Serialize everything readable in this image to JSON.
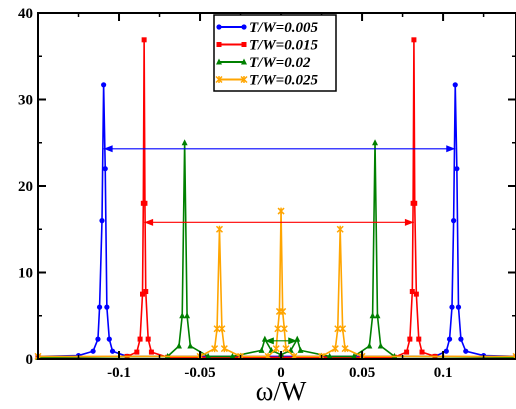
{
  "chart_data": {
    "type": "line",
    "title": "",
    "xlabel": "ω/W",
    "ylabel": "",
    "xlim": [
      -0.15,
      0.145
    ],
    "ylim": [
      0,
      40
    ],
    "x_ticks": [
      {
        "value": -0.1,
        "label": "-0.1"
      },
      {
        "value": -0.05,
        "label": "-0.05"
      },
      {
        "value": 0,
        "label": "0"
      },
      {
        "value": 0.05,
        "label": "0.05"
      },
      {
        "value": 0.1,
        "label": "0.1"
      }
    ],
    "y_ticks": [
      {
        "value": 0,
        "label": "0"
      },
      {
        "value": 10,
        "label": "10"
      },
      {
        "value": 20,
        "label": "20"
      },
      {
        "value": 30,
        "label": "30"
      },
      {
        "value": 40,
        "label": "40"
      }
    ],
    "legend_position": "top-center",
    "series": [
      {
        "name": "T/W=0.005",
        "color": "#0000ff",
        "marker": "circle",
        "points": [
          [
            -0.15,
            0.3
          ],
          [
            -0.125,
            0.4
          ],
          [
            -0.116,
            0.9
          ],
          [
            -0.113,
            2.3
          ],
          [
            -0.112,
            6
          ],
          [
            -0.1105,
            16
          ],
          [
            -0.1095,
            31.7
          ],
          [
            -0.1085,
            22
          ],
          [
            -0.1075,
            6
          ],
          [
            -0.106,
            2.3
          ],
          [
            -0.104,
            0.9
          ],
          [
            -0.095,
            0.3
          ],
          [
            0,
            0.3
          ],
          [
            0.095,
            0.3
          ],
          [
            0.102,
            0.9
          ],
          [
            0.104,
            2.3
          ],
          [
            0.1055,
            6
          ],
          [
            0.1065,
            16
          ],
          [
            0.1075,
            31.7
          ],
          [
            0.1085,
            22
          ],
          [
            0.1095,
            6
          ],
          [
            0.111,
            2.3
          ],
          [
            0.114,
            0.9
          ],
          [
            0.125,
            0.4
          ],
          [
            0.145,
            0.3
          ]
        ]
      },
      {
        "name": "T/W=0.015",
        "color": "#ff0000",
        "marker": "square",
        "points": [
          [
            -0.15,
            0.2
          ],
          [
            -0.095,
            0.3
          ],
          [
            -0.089,
            0.8
          ],
          [
            -0.087,
            2.3
          ],
          [
            -0.0855,
            7.5
          ],
          [
            -0.085,
            18
          ],
          [
            -0.0845,
            36.9
          ],
          [
            -0.084,
            18
          ],
          [
            -0.0835,
            7.8
          ],
          [
            -0.082,
            2.3
          ],
          [
            -0.08,
            0.8
          ],
          [
            -0.07,
            0.2
          ],
          [
            0,
            0.2
          ],
          [
            0.07,
            0.2
          ],
          [
            0.0775,
            0.8
          ],
          [
            0.0795,
            2.3
          ],
          [
            0.081,
            7.8
          ],
          [
            0.0815,
            18
          ],
          [
            0.082,
            36.9
          ],
          [
            0.0825,
            18
          ],
          [
            0.0835,
            7.5
          ],
          [
            0.085,
            2.3
          ],
          [
            0.087,
            0.8
          ],
          [
            0.095,
            0.3
          ],
          [
            0.145,
            0.2
          ]
        ]
      },
      {
        "name": "T/W=0.02",
        "color": "#008000",
        "marker": "triangle",
        "points": [
          [
            -0.15,
            0.2
          ],
          [
            -0.07,
            0.3
          ],
          [
            -0.063,
            1.5
          ],
          [
            -0.061,
            5
          ],
          [
            -0.0595,
            25
          ],
          [
            -0.058,
            5
          ],
          [
            -0.056,
            1.5
          ],
          [
            -0.045,
            0.3
          ],
          [
            -0.03,
            0.3
          ],
          [
            -0.012,
            1
          ],
          [
            -0.01,
            2.3
          ],
          [
            -0.006,
            1
          ],
          [
            0,
            0.5
          ],
          [
            0.006,
            1
          ],
          [
            0.01,
            2.3
          ],
          [
            0.012,
            1
          ],
          [
            0.03,
            0.3
          ],
          [
            0.045,
            0.3
          ],
          [
            0.0545,
            1.5
          ],
          [
            0.0565,
            5
          ],
          [
            0.058,
            25
          ],
          [
            0.0595,
            5
          ],
          [
            0.0615,
            1.5
          ],
          [
            0.07,
            0.3
          ],
          [
            0.145,
            0.2
          ]
        ]
      },
      {
        "name": "T/W=0.025",
        "color": "#ffa500",
        "marker": "star",
        "points": [
          [
            -0.15,
            0.3
          ],
          [
            -0.05,
            0.3
          ],
          [
            -0.041,
            1.2
          ],
          [
            -0.0395,
            3.5
          ],
          [
            -0.038,
            15
          ],
          [
            -0.0365,
            3.5
          ],
          [
            -0.035,
            1.2
          ],
          [
            -0.025,
            0.3
          ],
          [
            -0.008,
            0.3
          ],
          [
            -0.003,
            1.2
          ],
          [
            -0.002,
            3.5
          ],
          [
            -0.001,
            5.5
          ],
          [
            0,
            17.1
          ],
          [
            0.001,
            5.5
          ],
          [
            0.002,
            3.5
          ],
          [
            0.003,
            1.2
          ],
          [
            0.008,
            0.3
          ],
          [
            0.025,
            0.3
          ],
          [
            0.0335,
            1.2
          ],
          [
            0.035,
            3.5
          ],
          [
            0.0365,
            15
          ],
          [
            0.038,
            3.5
          ],
          [
            0.0395,
            1.2
          ],
          [
            0.05,
            0.3
          ],
          [
            0.145,
            0.3
          ]
        ]
      }
    ],
    "annotations": [
      {
        "type": "double-arrow",
        "color": "#0000ff",
        "x1": -0.1095,
        "x2": 0.1075,
        "y": 24.3
      },
      {
        "type": "double-arrow",
        "color": "#ff0000",
        "x1": -0.0845,
        "x2": 0.082,
        "y": 15.8
      },
      {
        "type": "double-arrow",
        "color": "#008000",
        "x1": -0.01,
        "x2": 0.01,
        "y": 2.1
      }
    ]
  }
}
